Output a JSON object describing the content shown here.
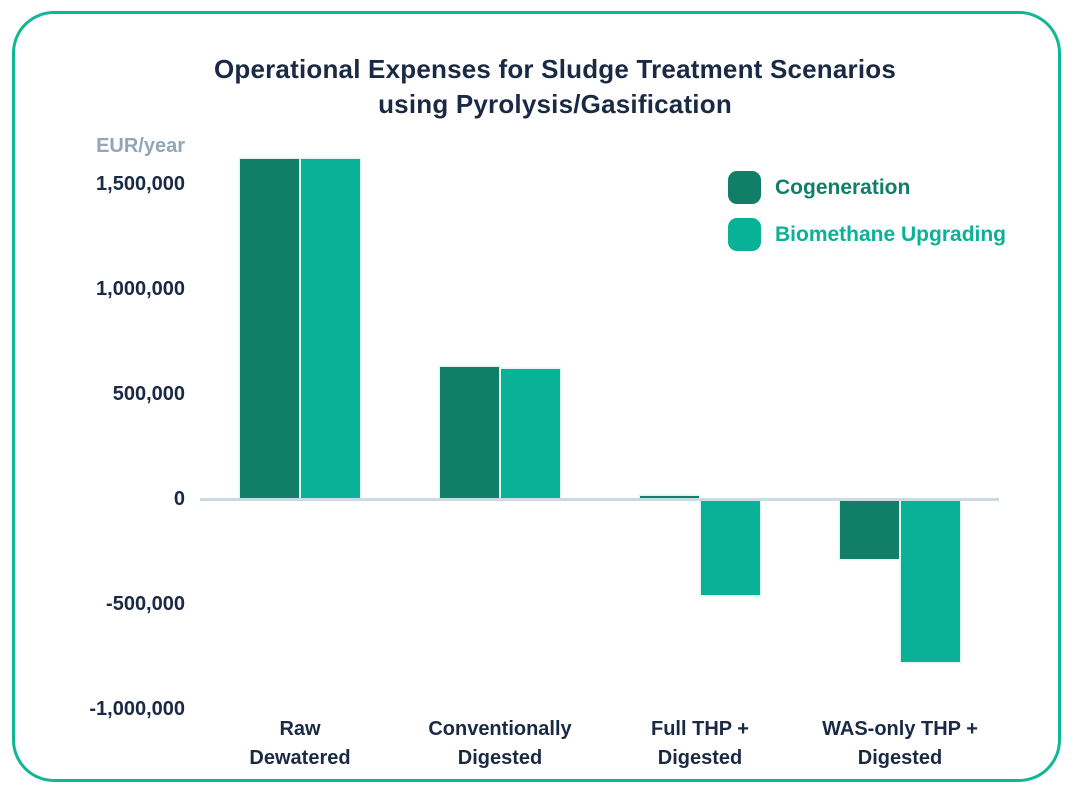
{
  "chart_data": {
    "type": "bar",
    "title_lines": [
      "Operational Expenses for Sludge Treatment Scenarios",
      "using Pyrolysis/Gasification"
    ],
    "title": "Operational Expenses for Sludge Treatment Scenarios using Pyrolysis/Gasification",
    "unit_label": "EUR/year",
    "ylabel": "EUR/year",
    "xlabel": "",
    "categories": [
      "Raw Dewatered",
      "Conventionally Digested",
      "Full THP + Digested",
      "WAS-only THP + Digested"
    ],
    "category_lines": [
      [
        "Raw",
        "Dewatered"
      ],
      [
        "Conventionally",
        "Digested"
      ],
      [
        "Full THP +",
        "Digested"
      ],
      [
        "WAS-only THP +",
        "Digested"
      ]
    ],
    "series": [
      {
        "name": "Cogeneration",
        "color": "#117F68",
        "values": [
          1620000,
          630000,
          15000,
          -280000
        ]
      },
      {
        "name": "Biomethane Upgrading",
        "color": "#09B197",
        "values": [
          1620000,
          620000,
          -450000,
          -770000
        ]
      }
    ],
    "y_ticks": [
      1500000,
      1000000,
      500000,
      0,
      -500000,
      -1000000
    ],
    "y_tick_labels": [
      "1,500,000",
      "1,000,000",
      "500,000",
      "0",
      "-500,000",
      "-1,000,000"
    ],
    "ylim": [
      -1050000,
      1650000
    ],
    "grid": false,
    "legend_position": "top-right",
    "colors": {
      "title": "#1A2A44",
      "tick_labels": "#1A2A44",
      "unit_label": "#92A5B9",
      "zero_line": "#CBDAE5",
      "card_border": "#10B795",
      "background": "#FFFFFF"
    }
  }
}
